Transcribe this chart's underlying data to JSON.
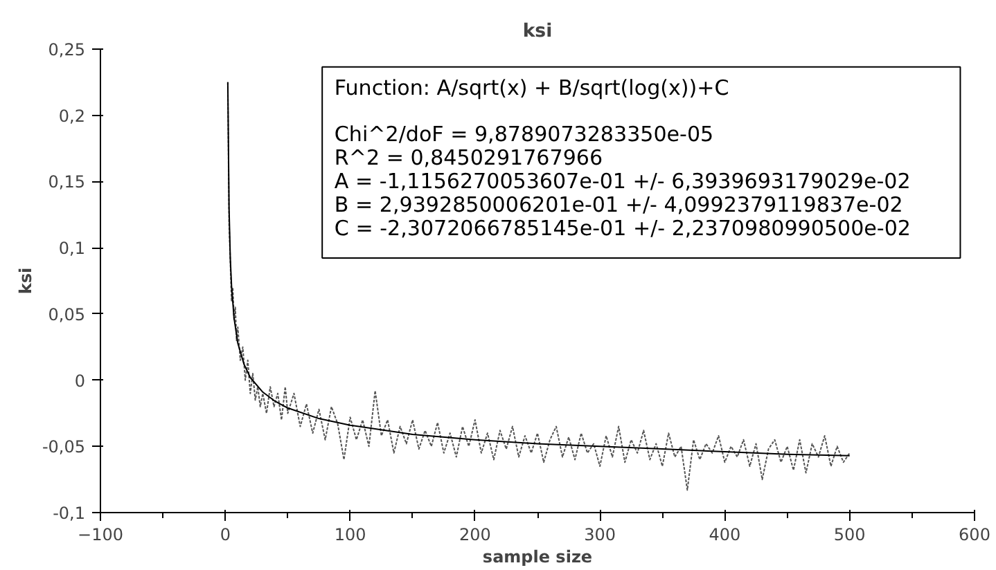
{
  "chart_data": {
    "type": "line",
    "title": "ksi",
    "xlabel": "sample size",
    "ylabel": "ksi",
    "xlim": [
      -100,
      600
    ],
    "ylim": [
      -0.1,
      0.25
    ],
    "xticks": [
      -100,
      {
        "value": -50,
        "label": null
      },
      0,
      {
        "value": 50,
        "label": null
      },
      100,
      {
        "value": 150,
        "label": null
      },
      200,
      {
        "value": 250,
        "label": null
      },
      300,
      {
        "value": 350,
        "label": null
      },
      400,
      {
        "value": 450,
        "label": null
      },
      500,
      {
        "value": 550,
        "label": null
      },
      600
    ],
    "yticks": [
      {
        "value": -0.1,
        "label": "-0,1"
      },
      {
        "value": -0.05,
        "label": "-0,05"
      },
      {
        "value": 0,
        "label": "0"
      },
      {
        "value": 0.05,
        "label": "0,05"
      },
      {
        "value": 0.1,
        "label": "0,1"
      },
      {
        "value": 0.15,
        "label": "0,15"
      },
      {
        "value": 0.2,
        "label": "0,2"
      },
      {
        "value": 0.25,
        "label": "0,25"
      }
    ],
    "grid": false,
    "series": [
      {
        "color": "#555555",
        "line_style": "dotted",
        "x": [
          2,
          3,
          4,
          5,
          6,
          7,
          8,
          9,
          10,
          12,
          14,
          16,
          18,
          20,
          22,
          24,
          26,
          28,
          30,
          33,
          36,
          39,
          42,
          45,
          48,
          50,
          55,
          60,
          65,
          70,
          75,
          80,
          85,
          90,
          95,
          100,
          105,
          110,
          115,
          120,
          125,
          130,
          135,
          140,
          145,
          150,
          155,
          160,
          165,
          170,
          175,
          180,
          185,
          190,
          195,
          200,
          205,
          210,
          215,
          220,
          225,
          230,
          235,
          240,
          245,
          250,
          255,
          260,
          265,
          270,
          275,
          280,
          285,
          290,
          295,
          300,
          305,
          310,
          315,
          320,
          325,
          330,
          335,
          340,
          345,
          350,
          355,
          360,
          365,
          370,
          375,
          380,
          385,
          390,
          395,
          400,
          405,
          410,
          415,
          420,
          425,
          430,
          435,
          440,
          445,
          450,
          455,
          460,
          465,
          470,
          475,
          480,
          485,
          490,
          495,
          500
        ],
        "values": [
          0.225,
          0.12,
          0.09,
          0.06,
          0.07,
          0.045,
          0.055,
          0.03,
          0.04,
          0.015,
          0.025,
          0.0,
          0.015,
          -0.01,
          0.005,
          -0.015,
          -0.005,
          -0.02,
          -0.01,
          -0.025,
          -0.005,
          -0.02,
          -0.01,
          -0.03,
          -0.005,
          -0.025,
          -0.01,
          -0.035,
          -0.018,
          -0.04,
          -0.022,
          -0.045,
          -0.02,
          -0.033,
          -0.06,
          -0.028,
          -0.045,
          -0.03,
          -0.05,
          -0.008,
          -0.042,
          -0.03,
          -0.055,
          -0.035,
          -0.048,
          -0.03,
          -0.052,
          -0.038,
          -0.05,
          -0.032,
          -0.055,
          -0.04,
          -0.058,
          -0.035,
          -0.05,
          -0.03,
          -0.055,
          -0.04,
          -0.06,
          -0.038,
          -0.052,
          -0.035,
          -0.058,
          -0.042,
          -0.055,
          -0.04,
          -0.062,
          -0.045,
          -0.035,
          -0.058,
          -0.043,
          -0.06,
          -0.04,
          -0.055,
          -0.048,
          -0.065,
          -0.042,
          -0.058,
          -0.035,
          -0.062,
          -0.045,
          -0.055,
          -0.038,
          -0.06,
          -0.048,
          -0.065,
          -0.04,
          -0.058,
          -0.05,
          -0.083,
          -0.045,
          -0.06,
          -0.048,
          -0.055,
          -0.042,
          -0.062,
          -0.05,
          -0.058,
          -0.045,
          -0.065,
          -0.048,
          -0.075,
          -0.052,
          -0.045,
          -0.062,
          -0.05,
          -0.068,
          -0.045,
          -0.07,
          -0.048,
          -0.058,
          -0.042,
          -0.065,
          -0.05,
          -0.062,
          -0.055
        ]
      },
      {
        "type": "line",
        "color": "#000000",
        "line_style": "solid",
        "x": [
          2,
          3,
          4,
          5,
          7,
          10,
          15,
          20,
          30,
          40,
          50,
          75,
          100,
          150,
          200,
          250,
          300,
          350,
          400,
          450,
          500
        ],
        "values": [
          0.225,
          0.13,
          0.092,
          0.071,
          0.047,
          0.028,
          0.012,
          0.002,
          -0.009,
          -0.016,
          -0.021,
          -0.029,
          -0.034,
          -0.041,
          -0.045,
          -0.048,
          -0.05,
          -0.052,
          -0.054,
          -0.056,
          -0.057
        ]
      }
    ],
    "annotations": [
      "Function: A/sqrt(x) + B/sqrt(log(x))+C",
      "Chi^2/doF = 9,8789073283350e-05",
      "R^2 = 0,8450291767966",
      "A = -1,1156270053607e-01 +/- 6,3939693179029e-02",
      "B = 2,9392850006201e-01 +/- 4,0992379119837e-02",
      "C = -2,3072066785145e-01 +/- 2,2370980990500e-02"
    ]
  }
}
